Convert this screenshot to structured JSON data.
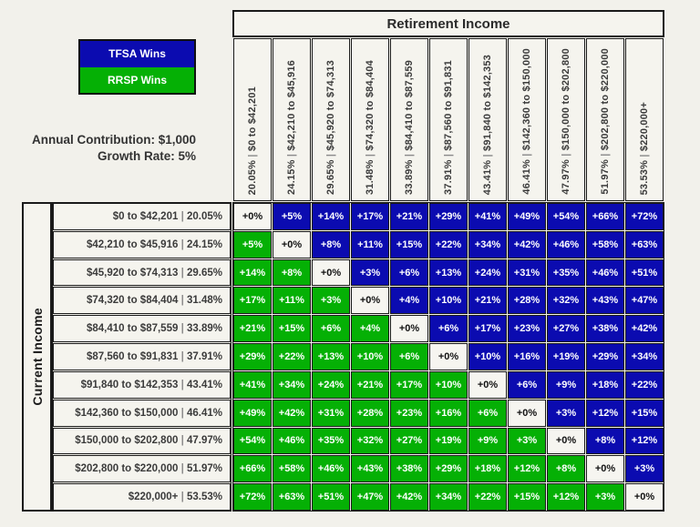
{
  "page": {
    "background": "#F2F1EB"
  },
  "legend": {
    "items": [
      {
        "label": "TFSA Wins",
        "color": "#0B0BB0"
      },
      {
        "label": "RRSP Wins",
        "color": "#05B005"
      }
    ]
  },
  "params": {
    "line1": "Annual Contribution: $1,000",
    "line2": "Growth Rate: 5%"
  },
  "chart_data": {
    "type": "heatmap",
    "x_title": "Retirement Income",
    "y_title": "Current Income",
    "separator": "|",
    "column_label_format": "{rate} | {range}",
    "row_label_format": "{range} | {rate}",
    "cell_text_format": "+{value}%",
    "brackets": [
      {
        "range": "$0 to $42,201",
        "rate": "20.05%"
      },
      {
        "range": "$42,210 to $45,916",
        "rate": "24.15%"
      },
      {
        "range": "$45,920 to $74,313",
        "rate": "29.65%"
      },
      {
        "range": "$74,320 to $84,404",
        "rate": "31.48%"
      },
      {
        "range": "$84,410 to $87,559",
        "rate": "33.89%"
      },
      {
        "range": "$87,560 to $91,831",
        "rate": "37.91%"
      },
      {
        "range": "$91,840 to $142,353",
        "rate": "43.41%"
      },
      {
        "range": "$142,360 to $150,000",
        "rate": "46.41%"
      },
      {
        "range": "$150,000 to $202,800",
        "rate": "47.97%"
      },
      {
        "range": "$202,800 to $220,000",
        "rate": "51.97%"
      },
      {
        "range": "$220,000+",
        "rate": "53.53%"
      }
    ],
    "values_percent_advantage": [
      [
        0,
        5,
        14,
        17,
        21,
        29,
        41,
        49,
        54,
        66,
        72
      ],
      [
        5,
        0,
        8,
        11,
        15,
        22,
        34,
        42,
        46,
        58,
        63
      ],
      [
        14,
        8,
        0,
        3,
        6,
        13,
        24,
        31,
        35,
        46,
        51
      ],
      [
        17,
        11,
        3,
        0,
        4,
        10,
        21,
        28,
        32,
        43,
        47
      ],
      [
        21,
        15,
        6,
        4,
        0,
        6,
        17,
        23,
        27,
        38,
        42
      ],
      [
        29,
        22,
        13,
        10,
        6,
        0,
        10,
        16,
        19,
        29,
        34
      ],
      [
        41,
        34,
        24,
        21,
        17,
        10,
        0,
        6,
        9,
        18,
        22
      ],
      [
        49,
        42,
        31,
        28,
        23,
        16,
        6,
        0,
        3,
        12,
        15
      ],
      [
        54,
        46,
        35,
        32,
        27,
        19,
        9,
        3,
        0,
        8,
        12
      ],
      [
        66,
        58,
        46,
        43,
        38,
        29,
        18,
        12,
        8,
        0,
        3
      ],
      [
        72,
        63,
        51,
        47,
        42,
        34,
        22,
        15,
        12,
        3,
        0
      ]
    ],
    "color_rule": {
      "above_diagonal_tfsa_wins": "#0B0BB0",
      "below_diagonal_rrsp_wins": "#05B005",
      "diagonal_tie": "#F6F5F0"
    }
  }
}
